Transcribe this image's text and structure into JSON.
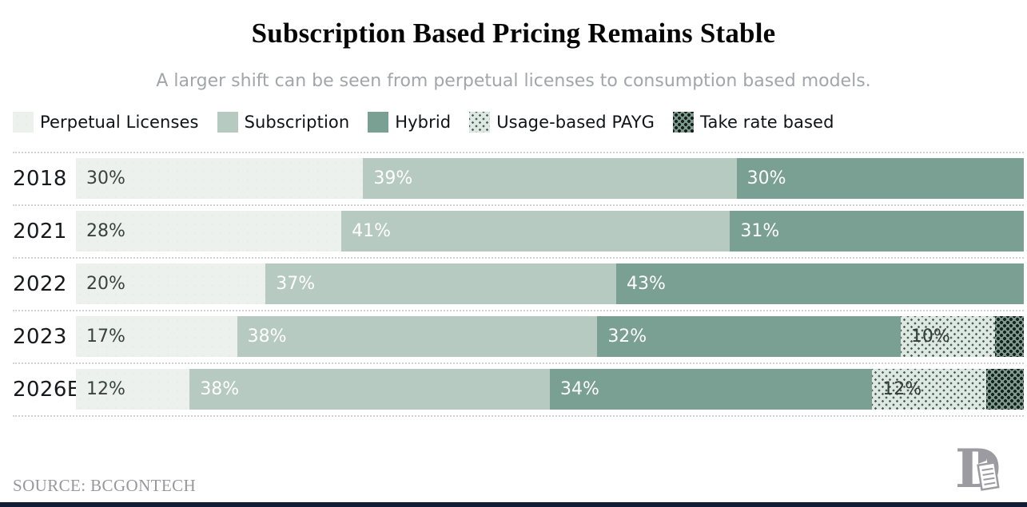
{
  "title": "Subscription Based Pricing Remains Stable",
  "subtitle": "A larger shift can be seen from perpetual licenses to consumption based models.",
  "legend": [
    {
      "key": "perpetual",
      "label": "Perpetual Licenses"
    },
    {
      "key": "subscription",
      "label": "Subscription"
    },
    {
      "key": "hybrid",
      "label": "Hybrid"
    },
    {
      "key": "usage",
      "label": "Usage-based PAYG"
    },
    {
      "key": "take",
      "label": "Take rate based"
    }
  ],
  "colors": {
    "perpetual": "#edf1ee",
    "subscription": "#b7cac1",
    "hybrid": "#79a093",
    "usage-bg": "#dde8e2",
    "usage-dot": "#4e5e56",
    "take-bg": "#7e998d",
    "take-dot": "#15211c",
    "bottom-strip": "#111d36"
  },
  "chart_data": {
    "type": "bar",
    "stacked": true,
    "orientation": "horizontal",
    "value_format": "percent",
    "title": "Subscription Based Pricing Remains Stable",
    "subtitle": "A larger shift can be seen from perpetual licenses to consumption based models.",
    "categories": [
      "2018",
      "2021",
      "2022",
      "2023",
      "2026E"
    ],
    "series": [
      {
        "key": "perpetual",
        "name": "Perpetual Licenses",
        "values": [
          30,
          28,
          20,
          17,
          12
        ]
      },
      {
        "key": "subscription",
        "name": "Subscription",
        "values": [
          39,
          41,
          37,
          38,
          38
        ]
      },
      {
        "key": "hybrid",
        "name": "Hybrid",
        "values": [
          30,
          31,
          43,
          32,
          34
        ]
      },
      {
        "key": "usage",
        "name": "Usage-based PAYG",
        "values": [
          0,
          0,
          0,
          10,
          12
        ]
      },
      {
        "key": "take",
        "name": "Take rate based",
        "values": [
          0,
          0,
          0,
          3,
          4
        ]
      }
    ],
    "xlim": [
      0,
      100
    ],
    "grid": false,
    "legend_position": "top-left",
    "bar_label_note": "segment labels shown inside bars for values >= 10%; take-rate slivers unlabeled (estimated from width)"
  },
  "source": "SOURCE: BCGONTECH",
  "logo": {
    "name": "monogram-d-logo",
    "color": "#9b9ba1"
  }
}
